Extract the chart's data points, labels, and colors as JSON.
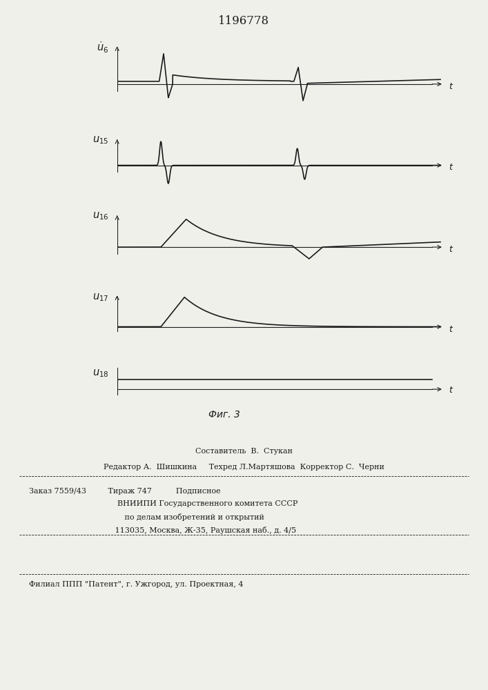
{
  "title": "1196778",
  "fig_label": "Фиг. 3",
  "background_color": "#f0f0eb",
  "line_color": "#1a1a1a",
  "ylabel_u6": "$\\dot{u}_6$",
  "ylabel_u15": "$u_{15}$",
  "ylabel_u16": "$u_{16}$",
  "ylabel_u17": "$u_{17}$",
  "ylabel_u18": "$u_{18}$",
  "footer_text1": "Составитель  В.  Стукан",
  "footer_text2": "Редактор А.  Шишкина     Техред Л.Мартяшова  Корректор С.  Черни",
  "footer_text3": "Заказ 7559/43         Тираж 747          Подписное",
  "footer_text4": "    ВНИИПИ Государственного комитета СССР",
  "footer_text5": "       по делам изобретений и открытий",
  "footer_text6": "   113035, Москва, Ж-35, Раушская наб., д. 4/5",
  "footer_text7": "Филиал ППП \"Патент\", г. Ужгород, ул. Проектная, 4"
}
